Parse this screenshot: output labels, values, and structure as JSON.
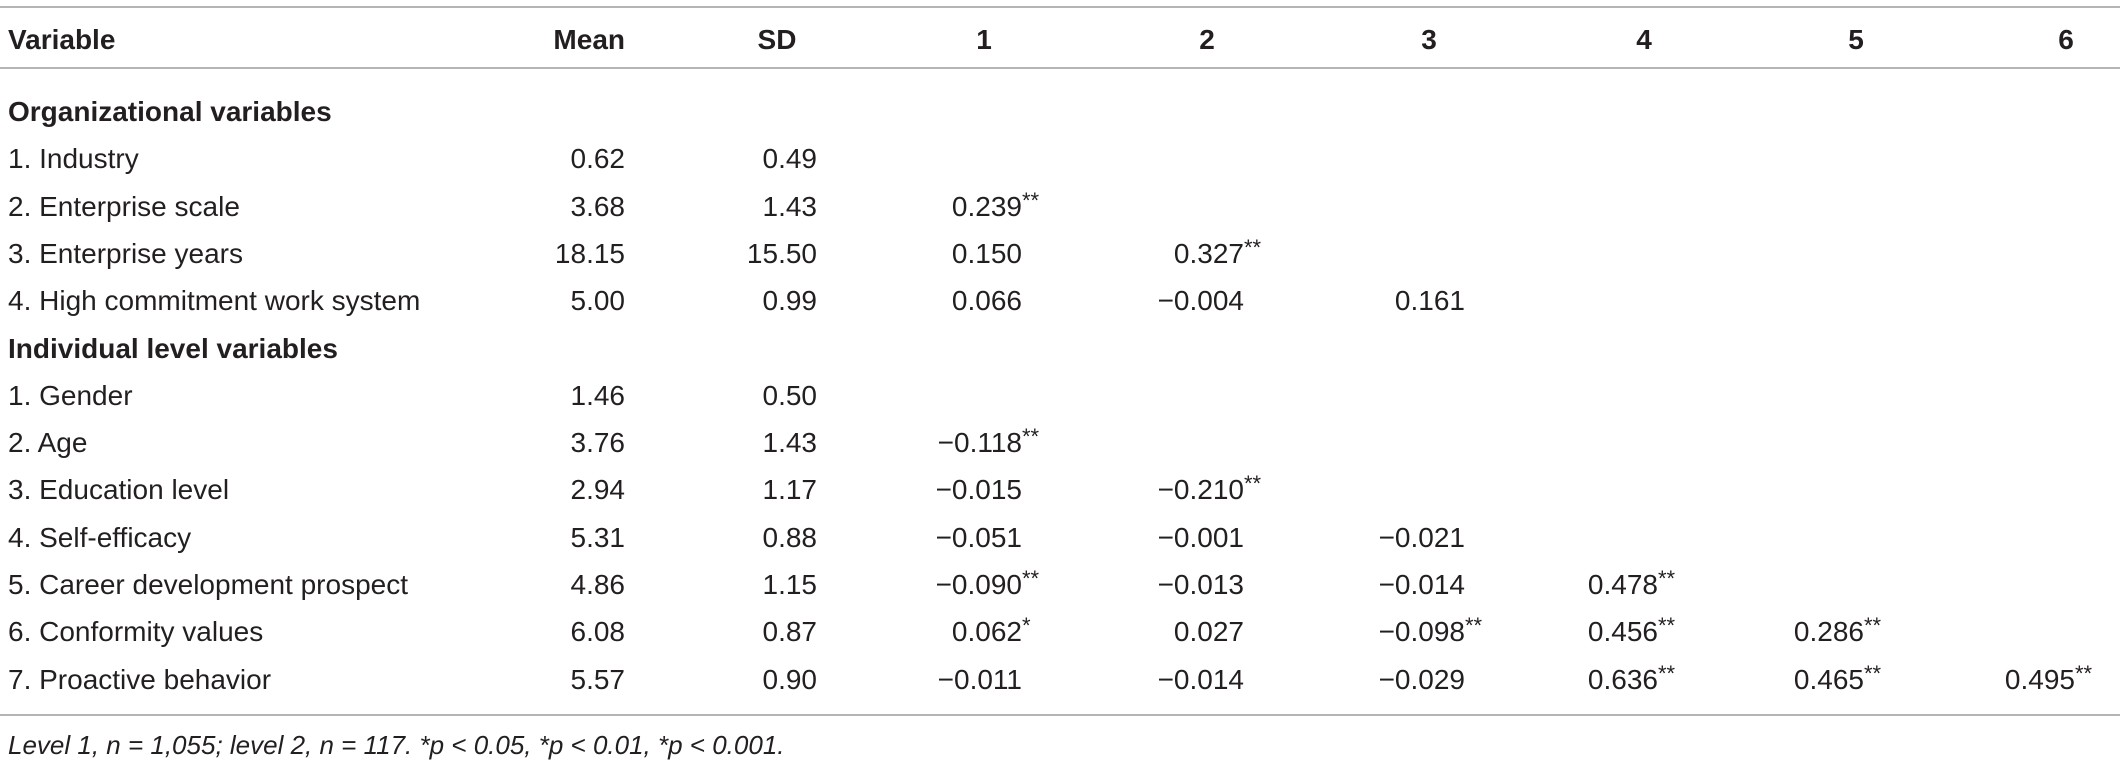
{
  "table": {
    "header": [
      "Variable",
      "Mean",
      "SD",
      "1",
      "2",
      "3",
      "4",
      "5",
      "6"
    ],
    "sections": [
      {
        "title": "Organizational variables",
        "rows": [
          [
            "1. Industry",
            "0.62",
            "0.49"
          ],
          [
            "2. Enterprise scale",
            "3.68",
            "1.43",
            "0.239**"
          ],
          [
            "3. Enterprise years",
            "18.15",
            "15.50",
            "0.150",
            "0.327**"
          ],
          [
            "4. High commitment work system",
            "5.00",
            "0.99",
            "0.066",
            "−0.004",
            "0.161"
          ]
        ]
      },
      {
        "title": "Individual level variables",
        "rows": [
          [
            "1. Gender",
            "1.46",
            "0.50"
          ],
          [
            "2. Age",
            "3.76",
            "1.43",
            "−0.118**"
          ],
          [
            "3. Education level",
            "2.94",
            "1.17",
            "−0.015",
            "−0.210**"
          ],
          [
            "4. Self-efficacy",
            "5.31",
            "0.88",
            "−0.051",
            "−0.001",
            "−0.021"
          ],
          [
            "5. Career development prospect",
            "4.86",
            "1.15",
            "−0.090**",
            "−0.013",
            "−0.014",
            "0.478**"
          ],
          [
            "6. Conformity values",
            "6.08",
            "0.87",
            "0.062*",
            "0.027",
            "−0.098**",
            "0.456**",
            "0.286**"
          ],
          [
            "7. Proactive behavior",
            "5.57",
            "0.90",
            "−0.011",
            "−0.014",
            "−0.029",
            "0.636**",
            "0.465**",
            "0.495**"
          ]
        ]
      }
    ],
    "footnote": "Level 1, n = 1,055; level 2, n = 117. *p < 0.05, *p < 0.01, *p < 0.001."
  }
}
